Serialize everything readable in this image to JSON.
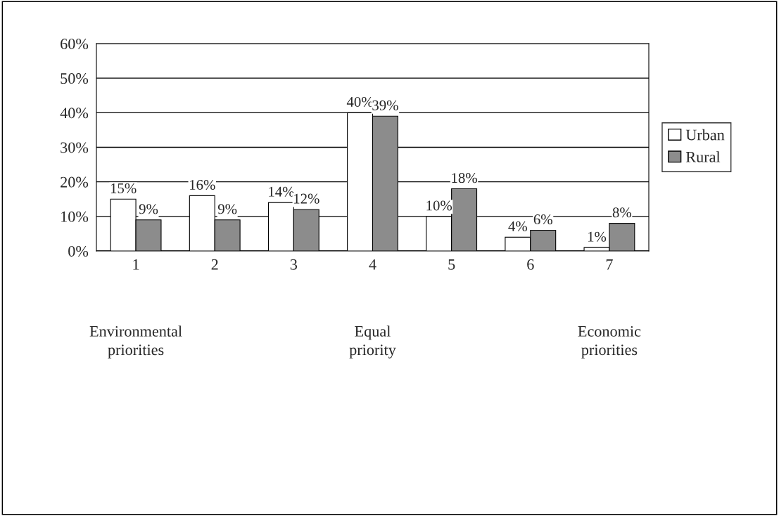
{
  "chart_data": {
    "type": "bar",
    "categories": [
      "1",
      "2",
      "3",
      "4",
      "5",
      "6",
      "7"
    ],
    "series": [
      {
        "name": "Urban",
        "color": "#ffffff",
        "values": [
          15,
          16,
          14,
          40,
          10,
          4,
          1
        ],
        "value_labels": [
          "15%",
          "16%",
          "14%",
          "40%",
          "10%",
          "4%",
          "1%"
        ]
      },
      {
        "name": "Rural",
        "color": "#8c8c8c",
        "values": [
          9,
          9,
          12,
          39,
          18,
          6,
          8
        ],
        "value_labels": [
          "9%",
          "9%",
          "12%",
          "39%",
          "18%",
          "6%",
          "8%"
        ]
      }
    ],
    "ylim": [
      0,
      60
    ],
    "yticks": [
      {
        "value": 0,
        "label": "0%"
      },
      {
        "value": 10,
        "label": "10%"
      },
      {
        "value": 20,
        "label": "20%"
      },
      {
        "value": 30,
        "label": "30%"
      },
      {
        "value": 40,
        "label": "40%"
      },
      {
        "value": 50,
        "label": "50%"
      },
      {
        "value": 60,
        "label": "60%"
      }
    ],
    "grid": "y",
    "legend": "right",
    "annotations": [
      "Environmental\npriorities",
      "Equal\npriority",
      "Economic\npriorities"
    ]
  }
}
